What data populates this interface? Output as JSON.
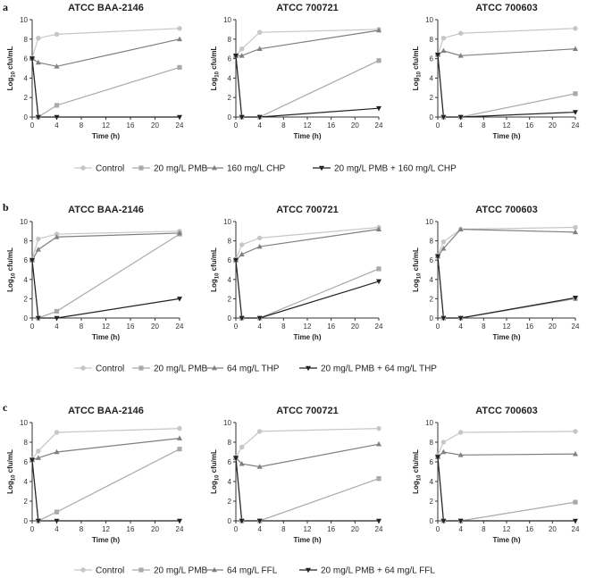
{
  "figure": {
    "colors": {
      "Control": "#c6c6c6",
      "PMB": "#a9a9a9",
      "Combo_drug": "#7f7f7f",
      "PMB_combo": "#222222",
      "axis": "#333333"
    }
  },
  "chart_data": [
    {
      "panel": "a",
      "title": "ATCC BAA-2146",
      "type": "line",
      "xlabel": "Time (h)",
      "ylabel_main": "Log",
      "ylabel_sub": "10",
      "ylabel_end": " cfu/mL",
      "xlim": [
        0,
        24
      ],
      "ylim": [
        0,
        10
      ],
      "xticks": [
        0,
        4,
        8,
        12,
        16,
        20,
        24
      ],
      "yticks": [
        0,
        2,
        4,
        6,
        8,
        10
      ],
      "x": [
        0,
        1,
        4,
        24
      ],
      "series": [
        {
          "name": "Control",
          "values": [
            6.1,
            8.1,
            8.5,
            9.1
          ]
        },
        {
          "name": "20 mg/L PMB",
          "values": [
            6.0,
            0,
            1.2,
            5.1
          ]
        },
        {
          "name": "160 mg/L CHP",
          "values": [
            6.0,
            5.6,
            5.2,
            8.0
          ]
        },
        {
          "name": "20 mg/L PMB + 160 mg/L CHP",
          "values": [
            6.0,
            0,
            0,
            0
          ]
        }
      ]
    },
    {
      "panel": "a",
      "title": "ATCC 700721",
      "type": "line",
      "xlabel": "Time (h)",
      "ylabel_main": "Log",
      "ylabel_sub": "10",
      "ylabel_end": " cfu/mL",
      "xlim": [
        0,
        24
      ],
      "ylim": [
        0,
        10
      ],
      "xticks": [
        0,
        4,
        8,
        12,
        16,
        20,
        24
      ],
      "yticks": [
        0,
        2,
        4,
        6,
        8,
        10
      ],
      "x": [
        0,
        1,
        4,
        24
      ],
      "series": [
        {
          "name": "Control",
          "values": [
            6.3,
            7.0,
            8.7,
            9.0
          ]
        },
        {
          "name": "20 mg/L PMB",
          "values": [
            6.3,
            0,
            0,
            5.8
          ]
        },
        {
          "name": "160 mg/L CHP",
          "values": [
            6.3,
            6.3,
            7.0,
            8.9
          ]
        },
        {
          "name": "20 mg/L PMB + 160 mg/L CHP",
          "values": [
            6.3,
            0,
            0,
            0.9
          ]
        }
      ]
    },
    {
      "panel": "a",
      "title": "ATCC 700603",
      "type": "line",
      "xlabel": "Time (h)",
      "ylabel_main": "Log",
      "ylabel_sub": "10",
      "ylabel_end": " cfu/mL",
      "xlim": [
        0,
        24
      ],
      "ylim": [
        0,
        10
      ],
      "xticks": [
        0,
        4,
        8,
        12,
        16,
        20,
        24
      ],
      "yticks": [
        0,
        2,
        4,
        6,
        8,
        10
      ],
      "x": [
        0,
        1,
        4,
        24
      ],
      "series": [
        {
          "name": "Control",
          "values": [
            6.4,
            8.1,
            8.6,
            9.1
          ]
        },
        {
          "name": "20 mg/L PMB",
          "values": [
            6.4,
            0,
            0,
            2.4
          ]
        },
        {
          "name": "160 mg/L CHP",
          "values": [
            6.4,
            6.8,
            6.3,
            7.0
          ]
        },
        {
          "name": "20 mg/L PMB + 160 mg/L CHP",
          "values": [
            6.4,
            0,
            0,
            0.5
          ]
        }
      ]
    },
    {
      "panel": "b",
      "title": "ATCC BAA-2146",
      "type": "line",
      "xlabel": "Time (h)",
      "ylabel_main": "Log",
      "ylabel_sub": "10",
      "ylabel_end": " cfu/mL",
      "xlim": [
        0,
        24
      ],
      "ylim": [
        0,
        10
      ],
      "xticks": [
        0,
        4,
        8,
        12,
        16,
        20,
        24
      ],
      "yticks": [
        0,
        2,
        4,
        6,
        8,
        10
      ],
      "x": [
        0,
        1,
        4,
        24
      ],
      "series": [
        {
          "name": "Control",
          "values": [
            6.1,
            8.2,
            8.7,
            9.0
          ]
        },
        {
          "name": "20 mg/L PMB",
          "values": [
            6.0,
            0,
            0.7,
            8.7
          ]
        },
        {
          "name": "64 mg/L THP",
          "values": [
            6.0,
            7.1,
            8.4,
            8.8
          ]
        },
        {
          "name": "20 mg/L PMB + 64 mg/L THP",
          "values": [
            6.0,
            0,
            0,
            2.0
          ]
        }
      ]
    },
    {
      "panel": "b",
      "title": "ATCC 700721",
      "type": "line",
      "xlabel": "Time (h)",
      "ylabel_main": "Log",
      "ylabel_sub": "10",
      "ylabel_end": " cfu/mL",
      "xlim": [
        0,
        24
      ],
      "ylim": [
        0,
        10
      ],
      "xticks": [
        0,
        4,
        8,
        12,
        16,
        20,
        24
      ],
      "yticks": [
        0,
        2,
        4,
        6,
        8,
        10
      ],
      "x": [
        0,
        1,
        4,
        24
      ],
      "series": [
        {
          "name": "Control",
          "values": [
            6.1,
            7.6,
            8.3,
            9.4
          ]
        },
        {
          "name": "20 mg/L PMB",
          "values": [
            6.0,
            0,
            0,
            5.1
          ]
        },
        {
          "name": "64 mg/L THP",
          "values": [
            6.0,
            6.6,
            7.4,
            9.2
          ]
        },
        {
          "name": "20 mg/L PMB + 64 mg/L THP",
          "values": [
            6.0,
            0,
            0,
            3.8
          ]
        }
      ]
    },
    {
      "panel": "b",
      "title": "ATCC 700603",
      "type": "line",
      "xlabel": "Time (h)",
      "ylabel_main": "Log",
      "ylabel_sub": "10",
      "ylabel_end": " cfu/mL",
      "xlim": [
        0,
        24
      ],
      "ylim": [
        0,
        10
      ],
      "xticks": [
        0,
        4,
        8,
        12,
        16,
        20,
        24
      ],
      "yticks": [
        0,
        2,
        4,
        6,
        8,
        10
      ],
      "x": [
        0,
        1,
        4,
        24
      ],
      "series": [
        {
          "name": "Control",
          "values": [
            6.5,
            7.9,
            9.2,
            9.4
          ]
        },
        {
          "name": "20 mg/L PMB",
          "values": [
            6.4,
            0,
            0,
            2.0
          ]
        },
        {
          "name": "64 mg/L THP",
          "values": [
            6.4,
            7.2,
            9.2,
            8.9
          ]
        },
        {
          "name": "20 mg/L PMB + 64 mg/L THP",
          "values": [
            6.4,
            0,
            0,
            2.1
          ]
        }
      ]
    },
    {
      "panel": "c",
      "title": "ATCC BAA-2146",
      "type": "line",
      "xlabel": "Time (h)",
      "ylabel_main": "Log",
      "ylabel_sub": "10",
      "ylabel_end": " cfu/mL",
      "xlim": [
        0,
        24
      ],
      "ylim": [
        0,
        10
      ],
      "xticks": [
        0,
        4,
        8,
        12,
        16,
        20,
        24
      ],
      "yticks": [
        0,
        2,
        4,
        6,
        8,
        10
      ],
      "x": [
        0,
        1,
        4,
        24
      ],
      "series": [
        {
          "name": "Control",
          "values": [
            6.3,
            7.1,
            9.0,
            9.4
          ]
        },
        {
          "name": "20 mg/L PMB",
          "values": [
            6.2,
            0,
            0.9,
            7.3
          ]
        },
        {
          "name": "64 mg/L FFL",
          "values": [
            6.2,
            6.4,
            7.0,
            8.4
          ]
        },
        {
          "name": "20 mg/L PMB + 64 mg/L FFL",
          "values": [
            6.2,
            0,
            0,
            0
          ]
        }
      ]
    },
    {
      "panel": "c",
      "title": "ATCC 700721",
      "type": "line",
      "xlabel": "Time (h)",
      "ylabel_main": "Log",
      "ylabel_sub": "10",
      "ylabel_end": " cfu/mL",
      "xlim": [
        0,
        24
      ],
      "ylim": [
        0,
        10
      ],
      "xticks": [
        0,
        4,
        8,
        12,
        16,
        20,
        24
      ],
      "yticks": [
        0,
        2,
        4,
        6,
        8,
        10
      ],
      "x": [
        0,
        1,
        4,
        24
      ],
      "series": [
        {
          "name": "Control",
          "values": [
            6.5,
            7.5,
            9.1,
            9.4
          ]
        },
        {
          "name": "20 mg/L PMB",
          "values": [
            6.4,
            0,
            0,
            4.3
          ]
        },
        {
          "name": "64 mg/L FFL",
          "values": [
            6.4,
            5.8,
            5.5,
            7.8
          ]
        },
        {
          "name": "20 mg/L PMB + 64 mg/L FFL",
          "values": [
            6.4,
            0,
            0,
            0
          ]
        }
      ]
    },
    {
      "panel": "c",
      "title": "ATCC 700603",
      "type": "line",
      "xlabel": "Time (h)",
      "ylabel_main": "Log",
      "ylabel_sub": "10",
      "ylabel_end": " cfu/mL",
      "xlim": [
        0,
        24
      ],
      "ylim": [
        0,
        10
      ],
      "xticks": [
        0,
        4,
        8,
        12,
        16,
        20,
        24
      ],
      "yticks": [
        0,
        2,
        4,
        6,
        8,
        10
      ],
      "x": [
        0,
        1,
        4,
        24
      ],
      "series": [
        {
          "name": "Control",
          "values": [
            6.7,
            8.0,
            9.0,
            9.1
          ]
        },
        {
          "name": "20 mg/L PMB",
          "values": [
            6.5,
            0,
            0,
            1.9
          ]
        },
        {
          "name": "64 mg/L FFL",
          "values": [
            6.5,
            7.0,
            6.7,
            6.8
          ]
        },
        {
          "name": "20 mg/L PMB + 64 mg/L FFL",
          "values": [
            6.5,
            0,
            0,
            0
          ]
        }
      ]
    }
  ],
  "legends": [
    {
      "panel": "a",
      "items": [
        "Control",
        "20 mg/L PMB",
        "160 mg/L CHP",
        "20 mg/L PMB + 160 mg/L CHP"
      ]
    },
    {
      "panel": "b",
      "items": [
        "Control",
        "20 mg/L PMB",
        "64 mg/L THP",
        "20 mg/L PMB + 64 mg/L THP"
      ]
    },
    {
      "panel": "c",
      "items": [
        "Control",
        "20 mg/L PMB",
        "64 mg/L FFL",
        "20 mg/L PMB + 64 mg/L FFL"
      ]
    }
  ]
}
